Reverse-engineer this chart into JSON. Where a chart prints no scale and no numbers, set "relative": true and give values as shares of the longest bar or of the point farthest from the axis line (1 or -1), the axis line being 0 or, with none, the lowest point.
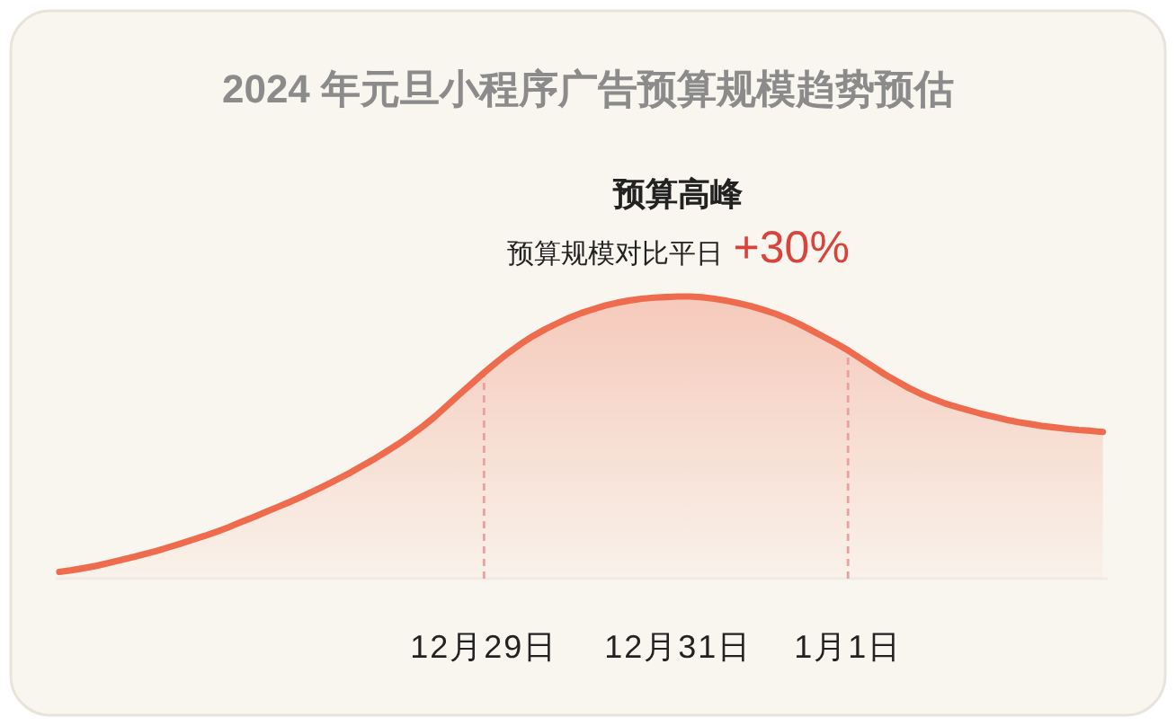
{
  "chart_data": {
    "type": "area",
    "title": "2024 年元旦小程序广告预算规模趋势预估",
    "relative": true,
    "color": "#ee6b4d",
    "categories": [
      null,
      null,
      null,
      null,
      null,
      null,
      null,
      null,
      null,
      null,
      null,
      null,
      null,
      null,
      null,
      null,
      null,
      null,
      null,
      null,
      null,
      null,
      null,
      null,
      null,
      null,
      null,
      null,
      null,
      null,
      null,
      null,
      null,
      null,
      null,
      "12月29日",
      null,
      null,
      null,
      null,
      null,
      null,
      null,
      null,
      null,
      null,
      null,
      null,
      null,
      null,
      null,
      "12月31日",
      null,
      null,
      null,
      null,
      null,
      null,
      null,
      null,
      null,
      null,
      null,
      null,
      null,
      "1月1日",
      null,
      null,
      null,
      null,
      null,
      null,
      null,
      null,
      null,
      null,
      null,
      null,
      null,
      null,
      null,
      null,
      null,
      null,
      null,
      null,
      null
    ],
    "values": [
      0.024,
      0.03,
      0.037,
      0.045,
      0.055,
      0.065,
      0.076,
      0.087,
      0.098,
      0.111,
      0.124,
      0.138,
      0.152,
      0.167,
      0.183,
      0.201,
      0.218,
      0.236,
      0.254,
      0.272,
      0.291,
      0.311,
      0.332,
      0.354,
      0.376,
      0.401,
      0.425,
      0.452,
      0.479,
      0.509,
      0.541,
      0.576,
      0.615,
      0.654,
      0.692,
      0.73,
      0.766,
      0.8,
      0.831,
      0.859,
      0.883,
      0.904,
      0.924,
      0.941,
      0.955,
      0.968,
      0.978,
      0.986,
      0.992,
      0.996,
      0.998,
      1.0,
      1.0,
      0.997,
      0.992,
      0.985,
      0.976,
      0.966,
      0.953,
      0.939,
      0.922,
      0.902,
      0.88,
      0.857,
      0.834,
      0.809,
      0.781,
      0.753,
      0.725,
      0.7,
      0.676,
      0.655,
      0.637,
      0.621,
      0.608,
      0.596,
      0.584,
      0.574,
      0.564,
      0.555,
      0.548,
      0.541,
      0.536,
      0.531,
      0.527,
      0.524,
      0.52
    ],
    "ref_lines": [
      {
        "axis": "x",
        "value": "12月29日",
        "color": "#eb9f9f",
        "line_style": "dashed"
      },
      {
        "axis": "x",
        "value": "1月1日",
        "color": "#eb9f9f",
        "line_style": "dashed"
      }
    ],
    "annotations": [
      {
        "text": "预算高峰",
        "x": "12月31日",
        "y": 1
      },
      "预算规模对比平日",
      "+30%"
    ]
  }
}
